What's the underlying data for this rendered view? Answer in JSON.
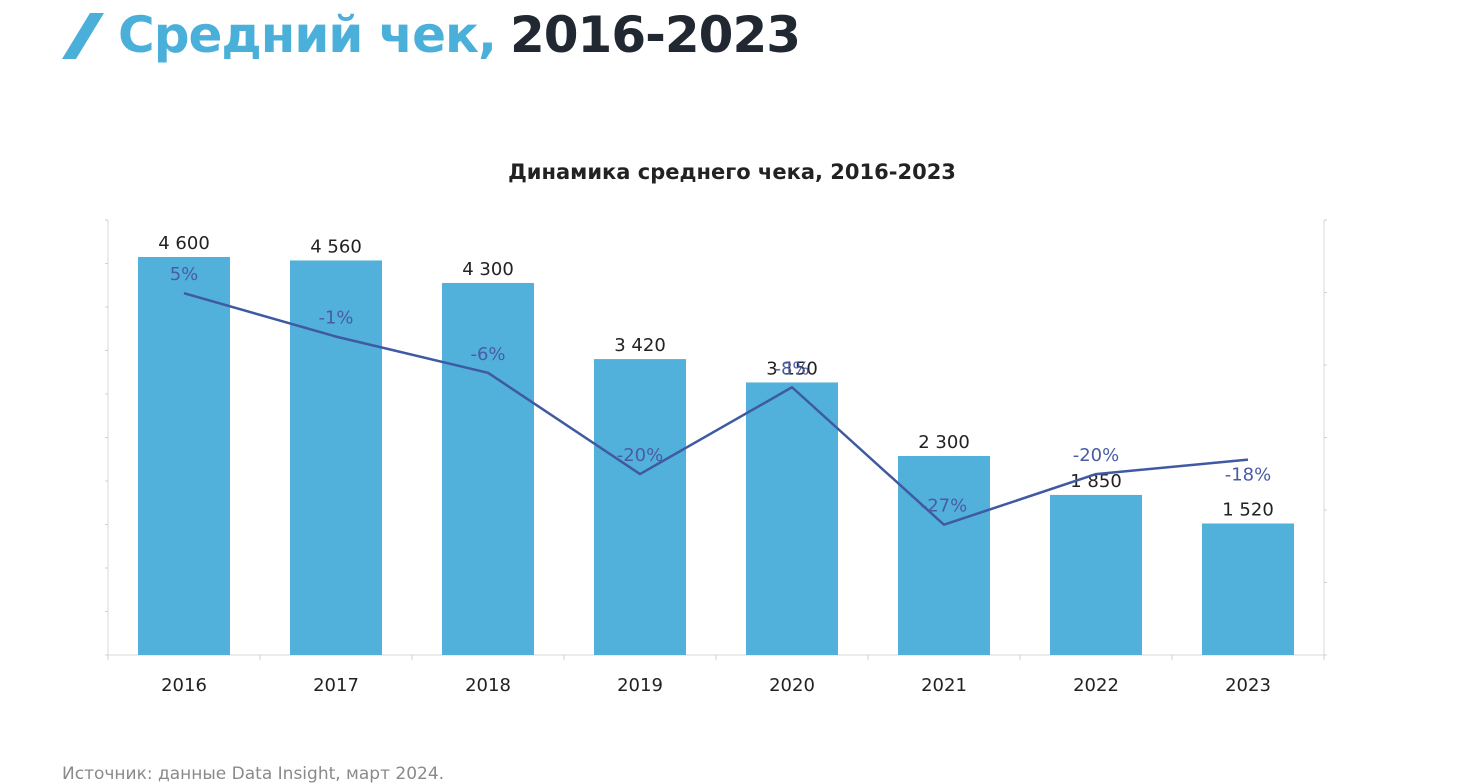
{
  "header": {
    "title_accent": "Средний чек,",
    "title_main": "2016-2023",
    "icon": "slash-icon",
    "accent_color": "#4bb0d9",
    "text_color": "#222831"
  },
  "chart_data": {
    "type": "bar",
    "title": "Динамика среднего чека, 2016-2023",
    "categories": [
      "2016",
      "2017",
      "2018",
      "2019",
      "2020",
      "2021",
      "2022",
      "2023"
    ],
    "series": [
      {
        "type": "bar",
        "values": [
          4600,
          4560,
          4300,
          3420,
          3150,
          2300,
          1850,
          1520
        ],
        "labels": [
          "4 600",
          "4 560",
          "4 300",
          "3 420",
          "3 150",
          "2 300",
          "1 850",
          "1 520"
        ],
        "color": "#52b1da"
      },
      {
        "type": "line",
        "values": [
          5,
          -1,
          -6,
          -20,
          -8,
          -27,
          -20,
          -18
        ],
        "labels": [
          "5%",
          "-1%",
          "-6%",
          "-20%",
          "-8%",
          "-27%",
          "-20%",
          "-18%"
        ],
        "color": "#3f5aa2"
      }
    ],
    "ylim": [
      0,
      4600
    ],
    "y2lim": [
      -45,
      10
    ],
    "grid": false,
    "legend": "none"
  },
  "footer": {
    "source": "Источник: данные Data Insight, март 2024."
  }
}
